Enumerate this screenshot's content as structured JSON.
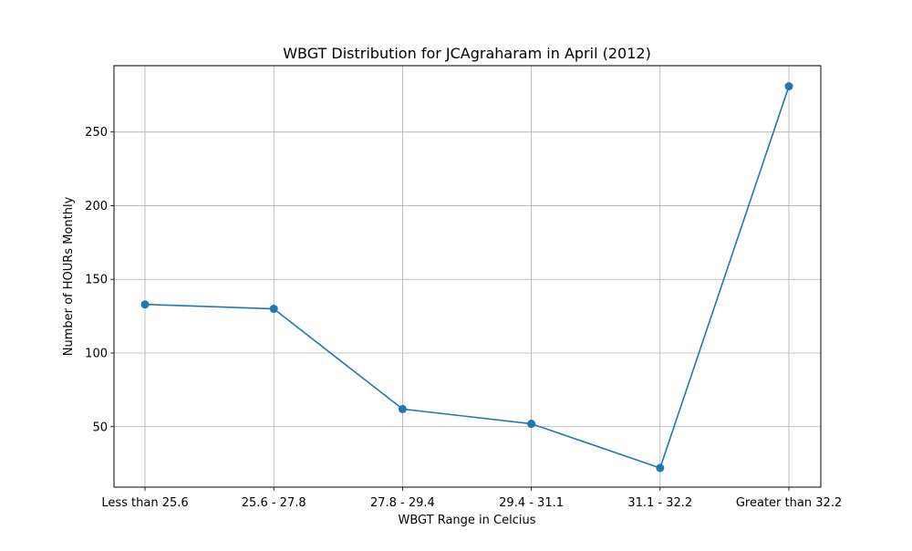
{
  "chart_data": {
    "type": "line",
    "title": "WBGT Distribution for JCAgraharam in April (2012)",
    "xlabel": "WBGT Range in Celcius",
    "ylabel": "Number of HOURs Monthly",
    "categories": [
      "Less than 25.6",
      "25.6 - 27.8",
      "27.8 - 29.4",
      "29.4 - 31.1",
      "31.1 - 32.2",
      "Greater than 32.2"
    ],
    "series": [
      {
        "values": [
          133,
          130,
          62,
          52,
          22,
          281
        ]
      }
    ],
    "ylim": [
      9,
      295
    ],
    "yticks": [
      50,
      100,
      150,
      200,
      250
    ],
    "grid": true,
    "colors": {
      "line": "#1f77b4",
      "marker": "#1f77b4",
      "grid": "#b0b0b0",
      "axis": "#000000"
    }
  }
}
